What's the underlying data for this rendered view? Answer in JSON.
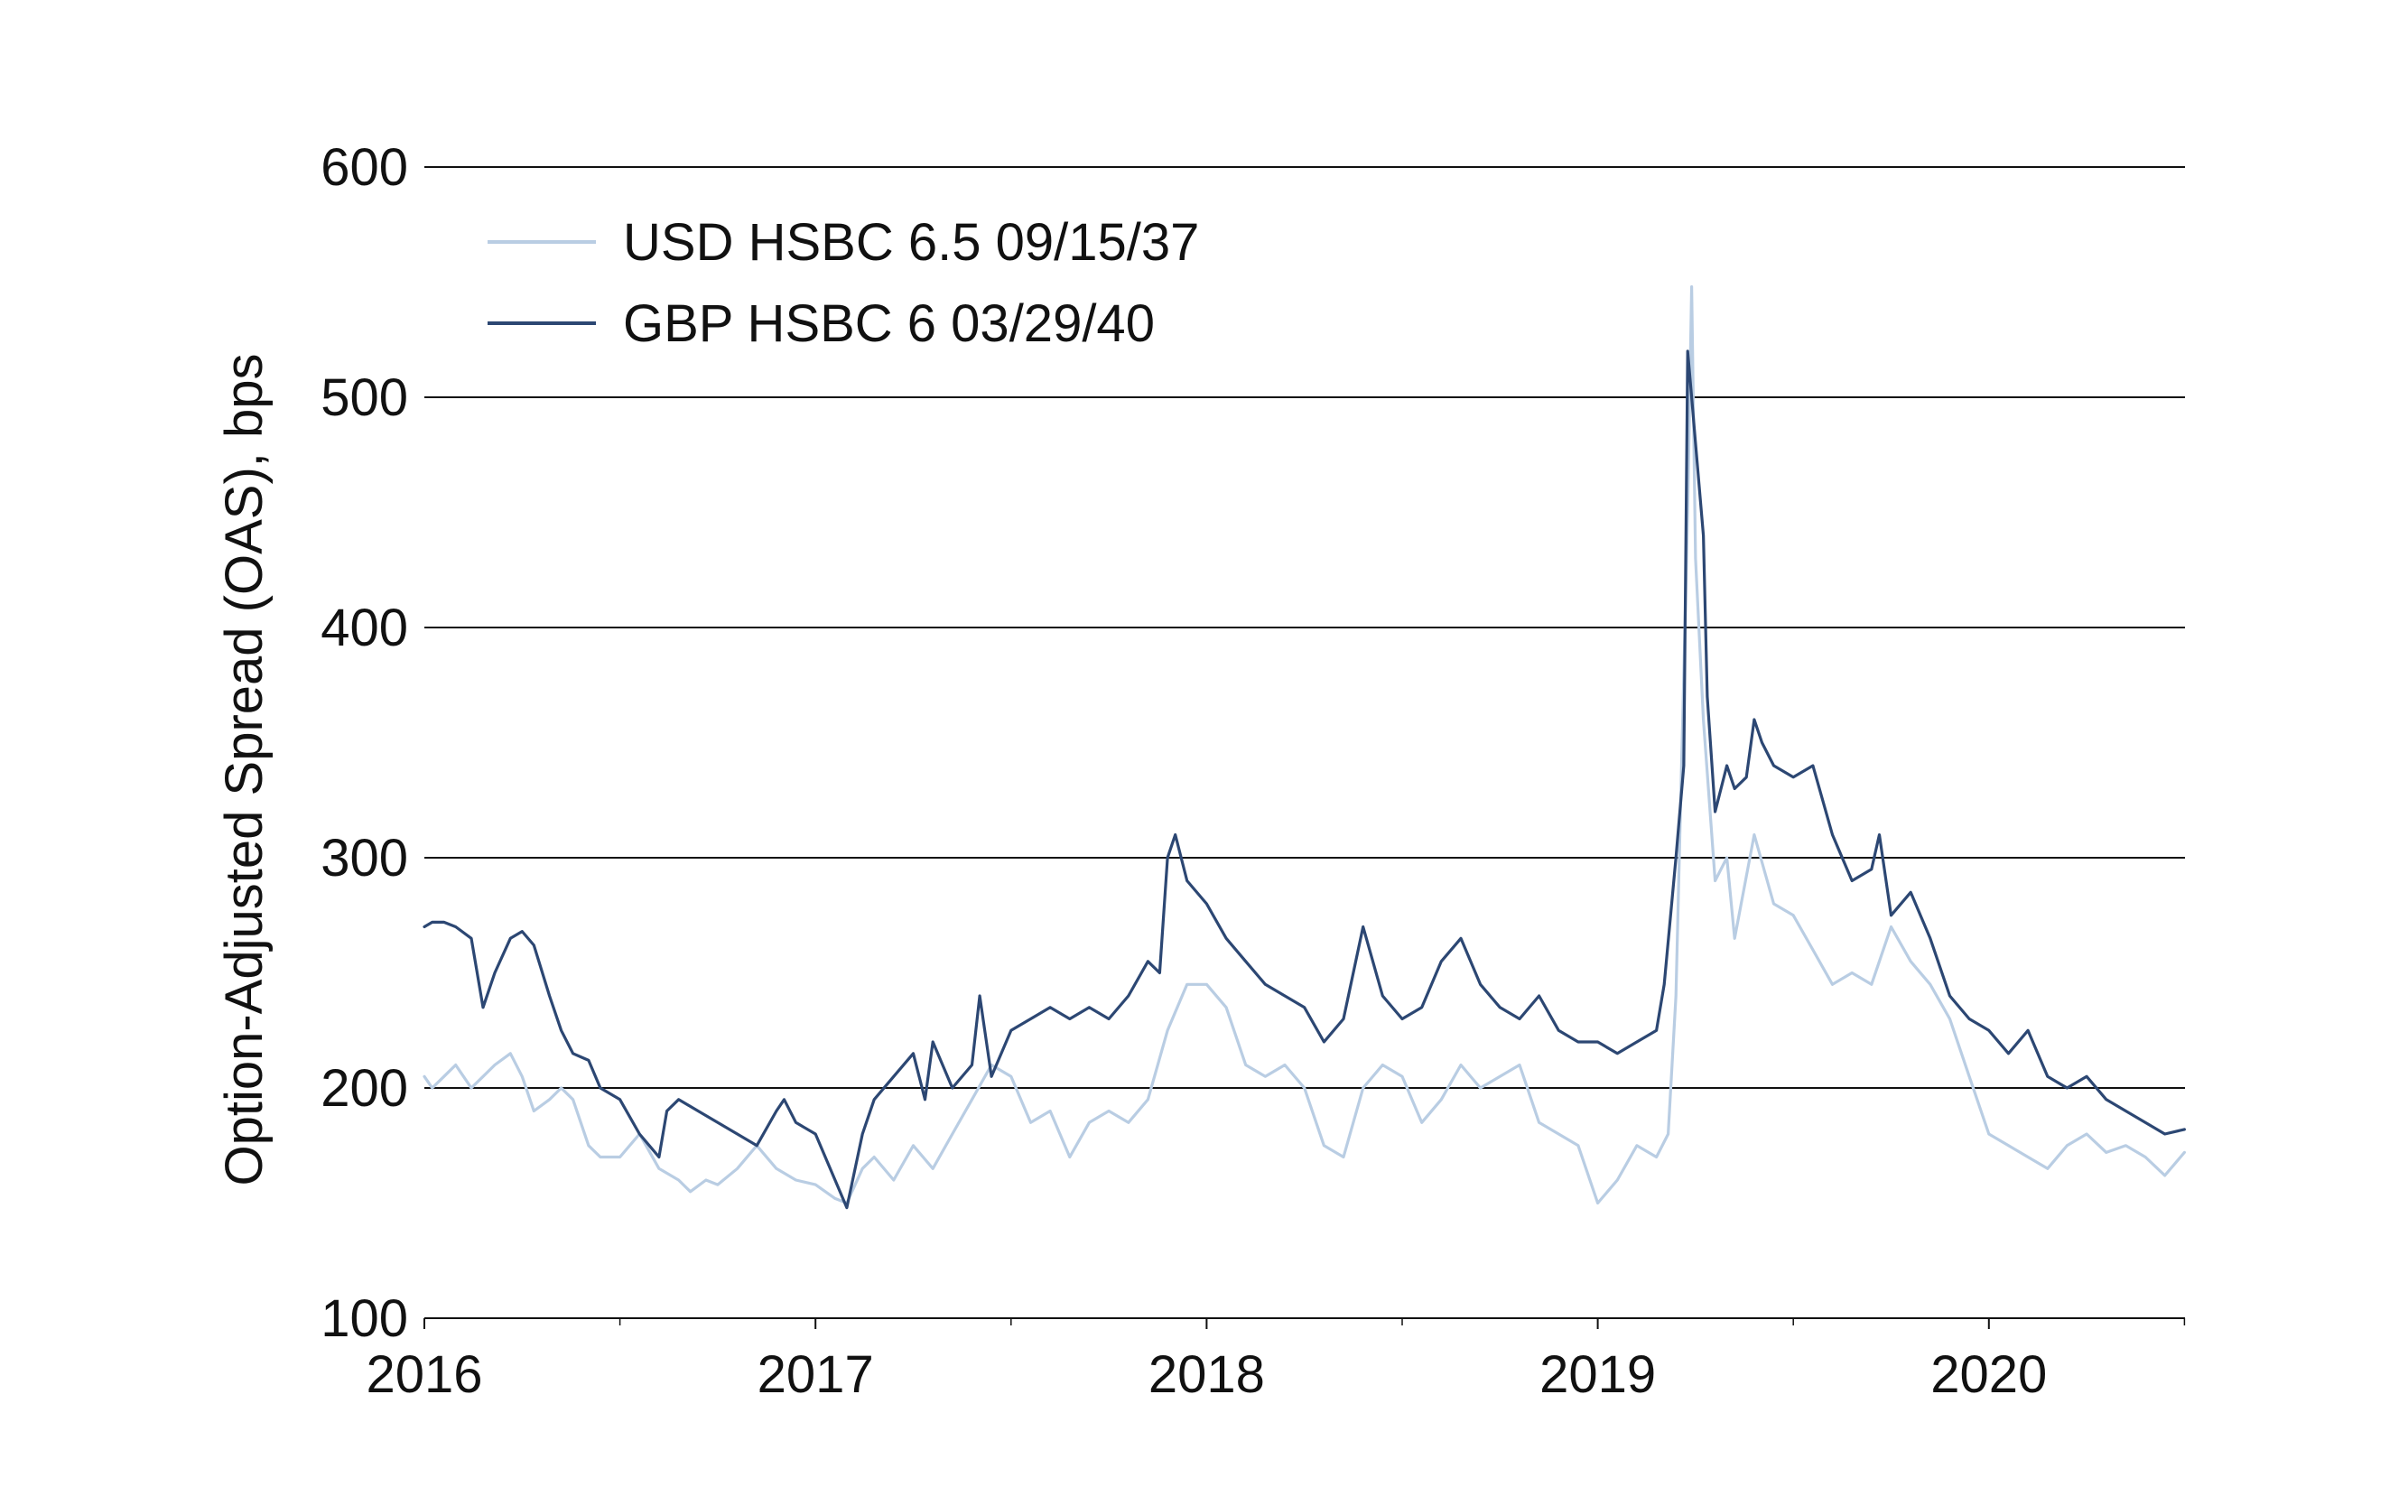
{
  "chart_data": {
    "type": "line",
    "title": "",
    "xlabel": "",
    "ylabel": "Option-Adjusted Spread (OAS), bps",
    "ylim": [
      100,
      600
    ],
    "xlim": [
      2016.0,
      2020.5
    ],
    "yticks": [
      100,
      200,
      300,
      400,
      500,
      600
    ],
    "xticks": [
      2016,
      2017,
      2018,
      2019,
      2020
    ],
    "xtick_labels": [
      "2016",
      "2017",
      "2018",
      "2019",
      "2020"
    ],
    "grid": "horizontal",
    "legend_position": "top-left",
    "series": [
      {
        "name": "USD HSBC 6.5 09/15/37",
        "color": "#b9cde3",
        "x": [
          2016.0,
          2016.02,
          2016.05,
          2016.08,
          2016.12,
          2016.15,
          2016.18,
          2016.22,
          2016.25,
          2016.28,
          2016.32,
          2016.35,
          2016.38,
          2016.42,
          2016.45,
          2016.5,
          2016.55,
          2016.6,
          2016.65,
          2016.68,
          2016.72,
          2016.75,
          2016.8,
          2016.85,
          2016.9,
          2016.95,
          2017.0,
          2017.05,
          2017.08,
          2017.12,
          2017.15,
          2017.2,
          2017.25,
          2017.3,
          2017.35,
          2017.4,
          2017.45,
          2017.5,
          2017.55,
          2017.6,
          2017.65,
          2017.7,
          2017.75,
          2017.8,
          2017.85,
          2017.9,
          2017.95,
          2018.0,
          2018.05,
          2018.1,
          2018.15,
          2018.2,
          2018.25,
          2018.3,
          2018.35,
          2018.4,
          2018.45,
          2018.5,
          2018.55,
          2018.6,
          2018.65,
          2018.7,
          2018.75,
          2018.8,
          2018.85,
          2018.9,
          2018.95,
          2019.0,
          2019.05,
          2019.1,
          2019.15,
          2019.18,
          2019.2,
          2019.22,
          2019.23,
          2019.24,
          2019.25,
          2019.27,
          2019.3,
          2019.33,
          2019.35,
          2019.4,
          2019.45,
          2019.5,
          2019.55,
          2019.6,
          2019.65,
          2019.7,
          2019.75,
          2019.8,
          2019.85,
          2019.9,
          2019.95,
          2020.0,
          2020.05,
          2020.1,
          2020.15,
          2020.2,
          2020.25,
          2020.3,
          2020.35,
          2020.4,
          2020.45,
          2020.5
        ],
        "values": [
          205,
          200,
          205,
          210,
          200,
          205,
          210,
          215,
          205,
          190,
          195,
          200,
          195,
          175,
          170,
          170,
          180,
          165,
          160,
          155,
          160,
          158,
          165,
          175,
          165,
          160,
          158,
          152,
          150,
          165,
          170,
          160,
          175,
          165,
          180,
          195,
          210,
          205,
          185,
          190,
          170,
          185,
          190,
          185,
          195,
          225,
          245,
          245,
          235,
          210,
          205,
          210,
          200,
          175,
          170,
          200,
          210,
          205,
          185,
          195,
          210,
          200,
          205,
          210,
          185,
          180,
          175,
          150,
          160,
          175,
          170,
          180,
          240,
          380,
          450,
          548,
          430,
          360,
          290,
          300,
          265,
          310,
          280,
          275,
          260,
          245,
          250,
          245,
          270,
          255,
          245,
          230,
          205,
          180,
          175,
          170,
          165,
          175,
          180,
          172,
          175,
          170,
          162,
          172
        ]
      },
      {
        "name": "GBP HSBC 6 03/29/40",
        "color": "#2c4773",
        "x": [
          2016.0,
          2016.02,
          2016.05,
          2016.08,
          2016.12,
          2016.15,
          2016.18,
          2016.22,
          2016.25,
          2016.28,
          2016.32,
          2016.35,
          2016.38,
          2016.42,
          2016.45,
          2016.5,
          2016.55,
          2016.6,
          2016.62,
          2016.65,
          2016.7,
          2016.75,
          2016.8,
          2016.85,
          2016.9,
          2016.92,
          2016.95,
          2017.0,
          2017.05,
          2017.08,
          2017.12,
          2017.15,
          2017.2,
          2017.25,
          2017.28,
          2017.3,
          2017.35,
          2017.4,
          2017.42,
          2017.45,
          2017.5,
          2017.55,
          2017.6,
          2017.65,
          2017.7,
          2017.75,
          2017.8,
          2017.85,
          2017.88,
          2017.9,
          2017.92,
          2017.95,
          2018.0,
          2018.05,
          2018.1,
          2018.15,
          2018.2,
          2018.25,
          2018.3,
          2018.35,
          2018.4,
          2018.45,
          2018.5,
          2018.55,
          2018.6,
          2018.65,
          2018.7,
          2018.75,
          2018.8,
          2018.85,
          2018.9,
          2018.95,
          2019.0,
          2019.05,
          2019.1,
          2019.15,
          2019.17,
          2019.2,
          2019.22,
          2019.23,
          2019.24,
          2019.25,
          2019.27,
          2019.28,
          2019.3,
          2019.33,
          2019.35,
          2019.38,
          2019.4,
          2019.42,
          2019.45,
          2019.5,
          2019.55,
          2019.6,
          2019.65,
          2019.7,
          2019.72,
          2019.75,
          2019.8,
          2019.85,
          2019.9,
          2019.95,
          2020.0,
          2020.05,
          2020.1,
          2020.15,
          2020.2,
          2020.25,
          2020.3,
          2020.35,
          2020.4,
          2020.45,
          2020.5
        ],
        "values": [
          270,
          272,
          272,
          270,
          265,
          235,
          250,
          265,
          268,
          262,
          240,
          225,
          215,
          212,
          200,
          195,
          180,
          170,
          190,
          195,
          190,
          185,
          180,
          175,
          190,
          195,
          185,
          180,
          160,
          148,
          180,
          195,
          205,
          215,
          195,
          220,
          200,
          210,
          240,
          205,
          225,
          230,
          235,
          230,
          235,
          230,
          240,
          255,
          250,
          300,
          310,
          290,
          280,
          265,
          255,
          245,
          240,
          235,
          220,
          230,
          270,
          240,
          230,
          235,
          255,
          265,
          245,
          235,
          230,
          240,
          225,
          220,
          220,
          215,
          220,
          225,
          245,
          300,
          340,
          520,
          500,
          480,
          440,
          370,
          320,
          340,
          330,
          335,
          360,
          350,
          340,
          335,
          340,
          310,
          290,
          295,
          310,
          275,
          285,
          265,
          240,
          230,
          225,
          215,
          225,
          205,
          200,
          205,
          195,
          190,
          185,
          180,
          182
        ]
      }
    ]
  }
}
